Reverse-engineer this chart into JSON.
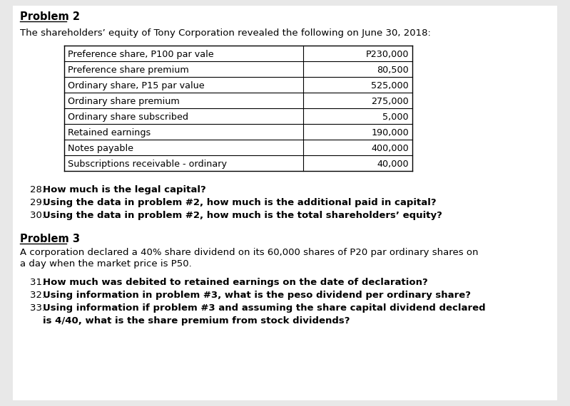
{
  "bg_color": "#e8e8e8",
  "page_bg": "#ffffff",
  "problem2_title": "Problem 2",
  "problem2_intro": "The shareholders’ equity of Tony Corporation revealed the following on June 30, 2018:",
  "table_rows": [
    [
      "Preference share, P100 par vale",
      "P230,000"
    ],
    [
      "Preference share premium",
      "80,500"
    ],
    [
      "Ordinary share, P15 par value",
      "525,000"
    ],
    [
      "Ordinary share premium",
      "275,000"
    ],
    [
      "Ordinary share subscribed",
      "5,000"
    ],
    [
      "Retained earnings",
      "190,000"
    ],
    [
      "Notes payable",
      "400,000"
    ],
    [
      "Subscriptions receivable - ordinary",
      "40,000"
    ]
  ],
  "q_p2": [
    [
      "28. ",
      "How much is the legal capital?"
    ],
    [
      "29. ",
      "Using the data in problem #2, how much is the additional paid in capital?"
    ],
    [
      "30. ",
      "Using the data in problem #2, how much is the total shareholders’ equity?"
    ]
  ],
  "problem3_title": "Problem 3",
  "problem3_intro_line1": "A corporation declared a 40% share dividend on its 60,000 shares of P20 par ordinary shares on",
  "problem3_intro_line2": "a day when the market price is P50.",
  "q_p3": [
    [
      "31. ",
      "How much was debited to retained earnings on the date of declaration?"
    ],
    [
      "32. ",
      "Using information in problem #3, what is the peso dividend per ordinary share?"
    ],
    [
      "33. ",
      "Using information if problem #3 and assuming the share capital dividend declared"
    ],
    [
      "",
      "is 4/40, what is the share premium from stock dividends?"
    ]
  ],
  "fs_title": 10.5,
  "fs_body": 9.5,
  "fs_table": 9.2
}
